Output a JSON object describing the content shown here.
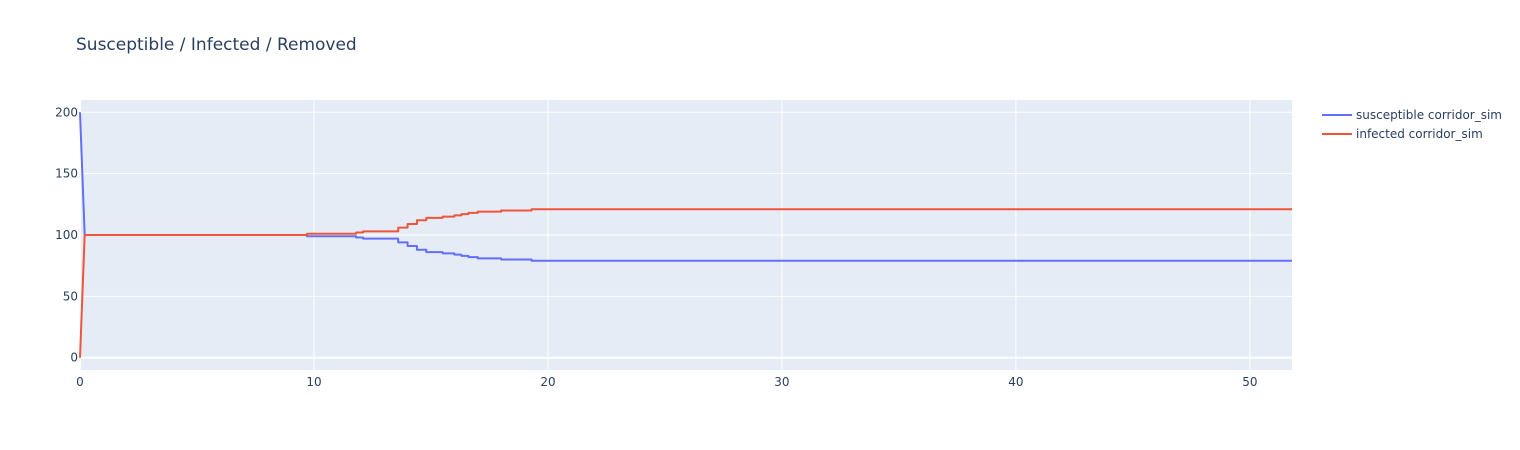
{
  "colors": {
    "plot_bg": "#E5ECF6",
    "grid": "#FFFFFF",
    "text": "#2a3f5f",
    "susceptible": "#636EFA",
    "infected": "#EF553B"
  },
  "chart_data": {
    "type": "line",
    "title": "Susceptible / Infected / Removed",
    "xlabel": "",
    "ylabel": "",
    "xlim": [
      0,
      51.8
    ],
    "ylim": [
      -10,
      210
    ],
    "x_ticks": [
      0,
      10,
      20,
      30,
      40,
      50
    ],
    "y_ticks": [
      0,
      50,
      100,
      150,
      200
    ],
    "grid": true,
    "legend_position": "top-right outside",
    "series": [
      {
        "name": "susceptible corridor_sim",
        "color": "#636EFA",
        "line_shape": "hv",
        "x": [
          0,
          0.2,
          9.7,
          11.8,
          12.1,
          13.4,
          13.6,
          14.0,
          14.4,
          14.8,
          15.5,
          16.0,
          16.3,
          16.6,
          17.0,
          17.7,
          18.0,
          19.3,
          51.8
        ],
        "y": [
          200,
          100,
          99,
          98,
          97,
          97,
          94,
          91,
          88,
          86,
          85,
          84,
          83,
          82,
          81,
          81,
          80,
          79,
          79
        ]
      },
      {
        "name": "infected corridor_sim",
        "color": "#EF553B",
        "line_shape": "hv",
        "x": [
          0,
          0.2,
          9.7,
          11.8,
          12.1,
          13.4,
          13.6,
          14.0,
          14.4,
          14.8,
          15.5,
          16.0,
          16.3,
          16.6,
          17.0,
          17.7,
          18.0,
          19.3,
          51.8
        ],
        "y": [
          0,
          100,
          101,
          102,
          103,
          103,
          106,
          109,
          112,
          114,
          115,
          116,
          117,
          118,
          119,
          119,
          120,
          121,
          121
        ]
      }
    ]
  }
}
